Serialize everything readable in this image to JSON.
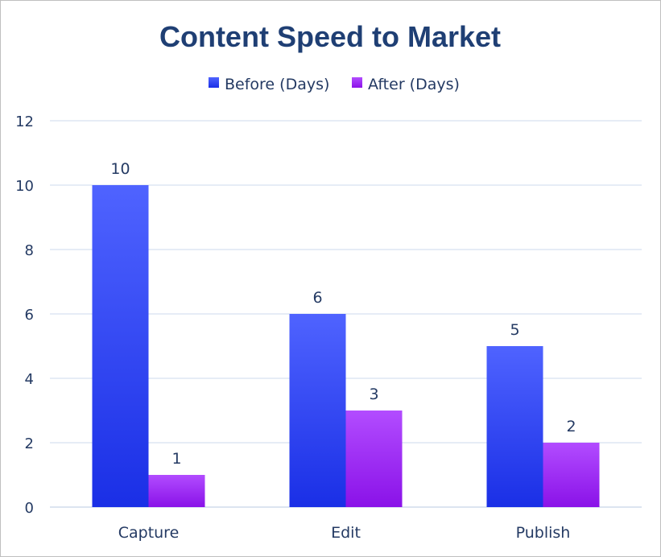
{
  "chart_data": {
    "type": "bar",
    "title": "Content Speed to Market",
    "categories": [
      "Capture",
      "Edit",
      "Publish"
    ],
    "series": [
      {
        "name": "Before (Days)",
        "values": [
          10,
          6,
          5
        ],
        "color_top": "#4f63ff",
        "color_bottom": "#1a2fe6"
      },
      {
        "name": "After (Days)",
        "values": [
          1,
          3,
          2
        ],
        "color_top": "#b24cff",
        "color_bottom": "#8a12e8"
      }
    ],
    "ylim": [
      0,
      12
    ],
    "yticks": [
      0,
      2,
      4,
      6,
      8,
      10,
      12
    ],
    "grid": true,
    "legend": "top-center",
    "data_labels": true
  }
}
